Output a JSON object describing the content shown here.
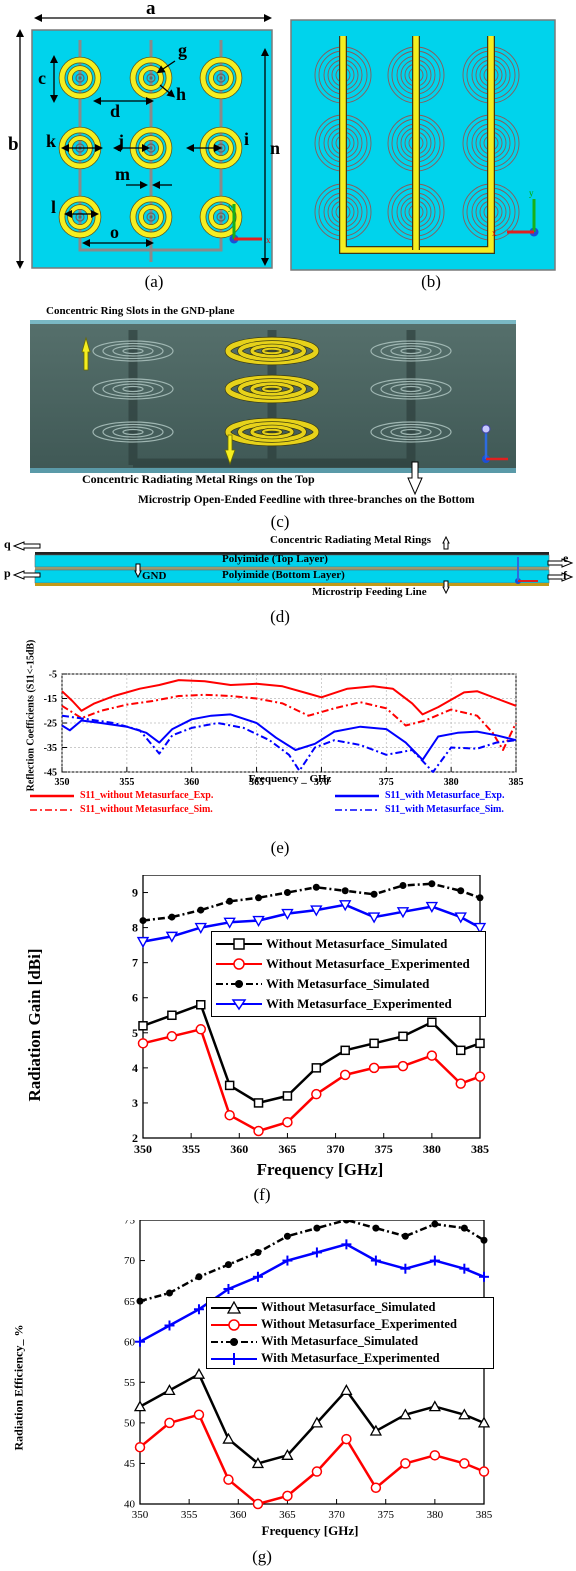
{
  "labels": {
    "dims": {
      "a": "a",
      "b": "b",
      "c": "c",
      "d": "d",
      "g": "g",
      "h": "h",
      "k": "k",
      "j": "j",
      "i": "i",
      "n": "n",
      "m": "m",
      "l": "l",
      "o": "o"
    },
    "a": "(a)",
    "b": "(b)",
    "c": "(c)",
    "d": "(d)",
    "e": "(e)",
    "f": "(f)",
    "g": "(g)"
  },
  "panel_c": {
    "slots_label": "Concentric Ring Slots in the GND-plane",
    "rings_label": "Concentric Radiating Metal Rings on the Top",
    "feed_label": "Microstrip Open-Ended Feedline with three-branches on the Bottom"
  },
  "panel_d": {
    "rings_label": "Concentric Radiating Metal Rings",
    "top_layer": "Polyimide (Top Layer)",
    "bottom_layer": "Polyimide (Bottom Layer)",
    "gnd": "GND",
    "feed_label": "Microstrip Feeding Line",
    "q": "q",
    "p": "p",
    "e": "e",
    "f": "f"
  },
  "colors": {
    "substrate": "#00d3ec",
    "ring_yellow": "#f5ee20",
    "red": "#ff0000",
    "blue": "#0000ff",
    "black": "#000000"
  },
  "chart_data": [
    {
      "type": "line",
      "panel": "e",
      "xlabel": "Frequency _ GHz",
      "ylabel": "Reflection Coefficients (S11<-15dB)",
      "xlim": [
        350,
        385
      ],
      "ylim": [
        -45,
        -5
      ],
      "xticks": [
        350,
        355,
        360,
        365,
        370,
        375,
        380,
        385
      ],
      "yticks": [
        -5,
        -15,
        -25,
        -35,
        -45
      ],
      "grid": true,
      "legend_position": "bottom",
      "series": [
        {
          "name": "S11_without Metasurface_Exp.",
          "color": "#ff0000",
          "dash": "solid",
          "x": [
            350,
            350.8,
            351.5,
            352.5,
            354,
            356,
            357.5,
            359,
            361,
            363,
            365,
            367,
            369,
            370,
            372,
            374,
            375.5,
            377,
            377.8,
            379,
            381,
            382,
            383.5,
            385
          ],
          "y": [
            -12,
            -16,
            -20,
            -17,
            -14,
            -11,
            -9.5,
            -7.5,
            -8,
            -9.5,
            -9,
            -10,
            -13,
            -14.5,
            -11,
            -10,
            -11,
            -17,
            -21.5,
            -18.5,
            -12.5,
            -12,
            -15,
            -18
          ]
        },
        {
          "name": "S11_without Metasurface_Sim.",
          "color": "#ff0000",
          "dash": "dashdot",
          "x": [
            350,
            351.5,
            353,
            355,
            357,
            359,
            361,
            363,
            365,
            367,
            369,
            371,
            373,
            375,
            376.5,
            378,
            380,
            382,
            383.2,
            384,
            385
          ],
          "y": [
            -18,
            -23,
            -20,
            -17.5,
            -16,
            -14,
            -13.5,
            -14,
            -15,
            -17,
            -22,
            -19,
            -16.5,
            -19,
            -26,
            -24,
            -19.5,
            -22,
            -29,
            -36,
            -25
          ]
        },
        {
          "name": "S11_with Metasurface_Exp.",
          "color": "#0000ff",
          "dash": "solid",
          "x": [
            350,
            350.6,
            351.5,
            353,
            355,
            356.5,
            357.5,
            358.5,
            360,
            361.5,
            363,
            365,
            366.5,
            368,
            369.5,
            371,
            373,
            375,
            376.5,
            377.8,
            379,
            380.5,
            382,
            383.5,
            385
          ],
          "y": [
            -26,
            -28,
            -24,
            -25,
            -26.5,
            -29,
            -33,
            -27.5,
            -23.5,
            -22,
            -21.5,
            -25,
            -31,
            -36,
            -33.5,
            -28.5,
            -26.5,
            -27.5,
            -33,
            -40,
            -30.5,
            -29,
            -28.5,
            -30,
            -32
          ]
        },
        {
          "name": "S11_with Metasurface_Sim.",
          "color": "#0000ff",
          "dash": "dashdot",
          "x": [
            350,
            352,
            354,
            356,
            357.5,
            358.5,
            360,
            362,
            364,
            366,
            367.5,
            368.3,
            369.5,
            371,
            373,
            375,
            377,
            378.6,
            380,
            382,
            383.5,
            385
          ],
          "y": [
            -22,
            -23.5,
            -25,
            -28,
            -37.5,
            -30,
            -27,
            -25,
            -27,
            -32,
            -38,
            -44.5,
            -35,
            -32,
            -34,
            -38,
            -36,
            -45,
            -35,
            -35.5,
            -33,
            -32
          ]
        }
      ]
    },
    {
      "type": "line",
      "panel": "f",
      "xlabel": "Frequency [GHz]",
      "ylabel": "Radiation Gain [dBi]",
      "xlim": [
        350,
        385
      ],
      "ylim": [
        2,
        9.5
      ],
      "xticks": [
        350,
        355,
        360,
        365,
        370,
        375,
        380,
        385
      ],
      "yticks": [
        2,
        3,
        4,
        5,
        6,
        7,
        8,
        9
      ],
      "legend_position": "center-right",
      "series": [
        {
          "name": "Without Metasurface_Simulated",
          "color": "#000000",
          "marker": "square",
          "dash": "solid",
          "x": [
            350,
            353,
            356,
            359,
            362,
            365,
            368,
            371,
            374,
            377,
            380,
            383,
            385
          ],
          "y": [
            5.2,
            5.5,
            5.8,
            3.5,
            3.0,
            3.2,
            4.0,
            4.5,
            4.7,
            4.9,
            5.3,
            4.5,
            4.7
          ]
        },
        {
          "name": "Without Metasurface_Experimented",
          "color": "#ff0000",
          "marker": "circle",
          "dash": "solid",
          "x": [
            350,
            353,
            356,
            359,
            362,
            365,
            368,
            371,
            374,
            377,
            380,
            383,
            385
          ],
          "y": [
            4.7,
            4.9,
            5.1,
            2.65,
            2.2,
            2.45,
            3.25,
            3.8,
            4.0,
            4.05,
            4.35,
            3.55,
            3.75
          ]
        },
        {
          "name": "With Metasurface_Simulated",
          "color": "#000000",
          "marker": "dot",
          "dash": "dashdot",
          "x": [
            350,
            353,
            356,
            359,
            362,
            365,
            368,
            371,
            374,
            377,
            380,
            383,
            385
          ],
          "y": [
            8.2,
            8.3,
            8.5,
            8.75,
            8.85,
            9.0,
            9.15,
            9.05,
            8.95,
            9.2,
            9.25,
            9.05,
            8.85
          ]
        },
        {
          "name": "With Metasurface_Experimented",
          "color": "#0000ff",
          "marker": "triangle-down",
          "dash": "solid",
          "x": [
            350,
            353,
            356,
            359,
            362,
            365,
            368,
            371,
            374,
            377,
            380,
            383,
            385
          ],
          "y": [
            7.6,
            7.75,
            8.0,
            8.15,
            8.2,
            8.4,
            8.5,
            8.65,
            8.3,
            8.45,
            8.6,
            8.3,
            8.0
          ]
        }
      ]
    },
    {
      "type": "line",
      "panel": "g",
      "xlabel": "Frequency [GHz]",
      "ylabel": "Radiation Efficiency_ %",
      "xlim": [
        350,
        385
      ],
      "ylim": [
        40,
        75
      ],
      "xticks": [
        350,
        355,
        360,
        365,
        370,
        375,
        380,
        385
      ],
      "yticks": [
        40,
        45,
        50,
        55,
        60,
        65,
        70,
        75
      ],
      "legend_position": "center-right",
      "series": [
        {
          "name": "Without Metasurface_Simulated",
          "color": "#000000",
          "marker": "triangle-up",
          "dash": "solid",
          "x": [
            350,
            353,
            356,
            359,
            362,
            365,
            368,
            371,
            374,
            377,
            380,
            383,
            385
          ],
          "y": [
            52,
            54,
            56,
            48,
            45,
            46,
            50,
            54,
            49,
            51,
            52,
            51,
            50
          ]
        },
        {
          "name": "Without Metasurface_Experimented",
          "color": "#ff0000",
          "marker": "circle",
          "dash": "solid",
          "x": [
            350,
            353,
            356,
            359,
            362,
            365,
            368,
            371,
            374,
            377,
            380,
            383,
            385
          ],
          "y": [
            47,
            50,
            51,
            43,
            40,
            41,
            44,
            48,
            42,
            45,
            46,
            45,
            44
          ]
        },
        {
          "name": "With Metasurface_Simulated",
          "color": "#000000",
          "marker": "dot",
          "dash": "dashdot",
          "x": [
            350,
            353,
            356,
            359,
            362,
            365,
            368,
            371,
            374,
            377,
            380,
            383,
            385
          ],
          "y": [
            65,
            66,
            68,
            69.5,
            71,
            73,
            74,
            75,
            74,
            73,
            74.5,
            74,
            72.5
          ]
        },
        {
          "name": "With Metasurface_Experimented",
          "color": "#0000ff",
          "marker": "plus",
          "dash": "solid",
          "x": [
            350,
            353,
            356,
            359,
            362,
            365,
            368,
            371,
            374,
            377,
            380,
            383,
            385
          ],
          "y": [
            60,
            62,
            64,
            66.5,
            68,
            70,
            71,
            72,
            70,
            69,
            70,
            69,
            68
          ]
        }
      ]
    }
  ]
}
